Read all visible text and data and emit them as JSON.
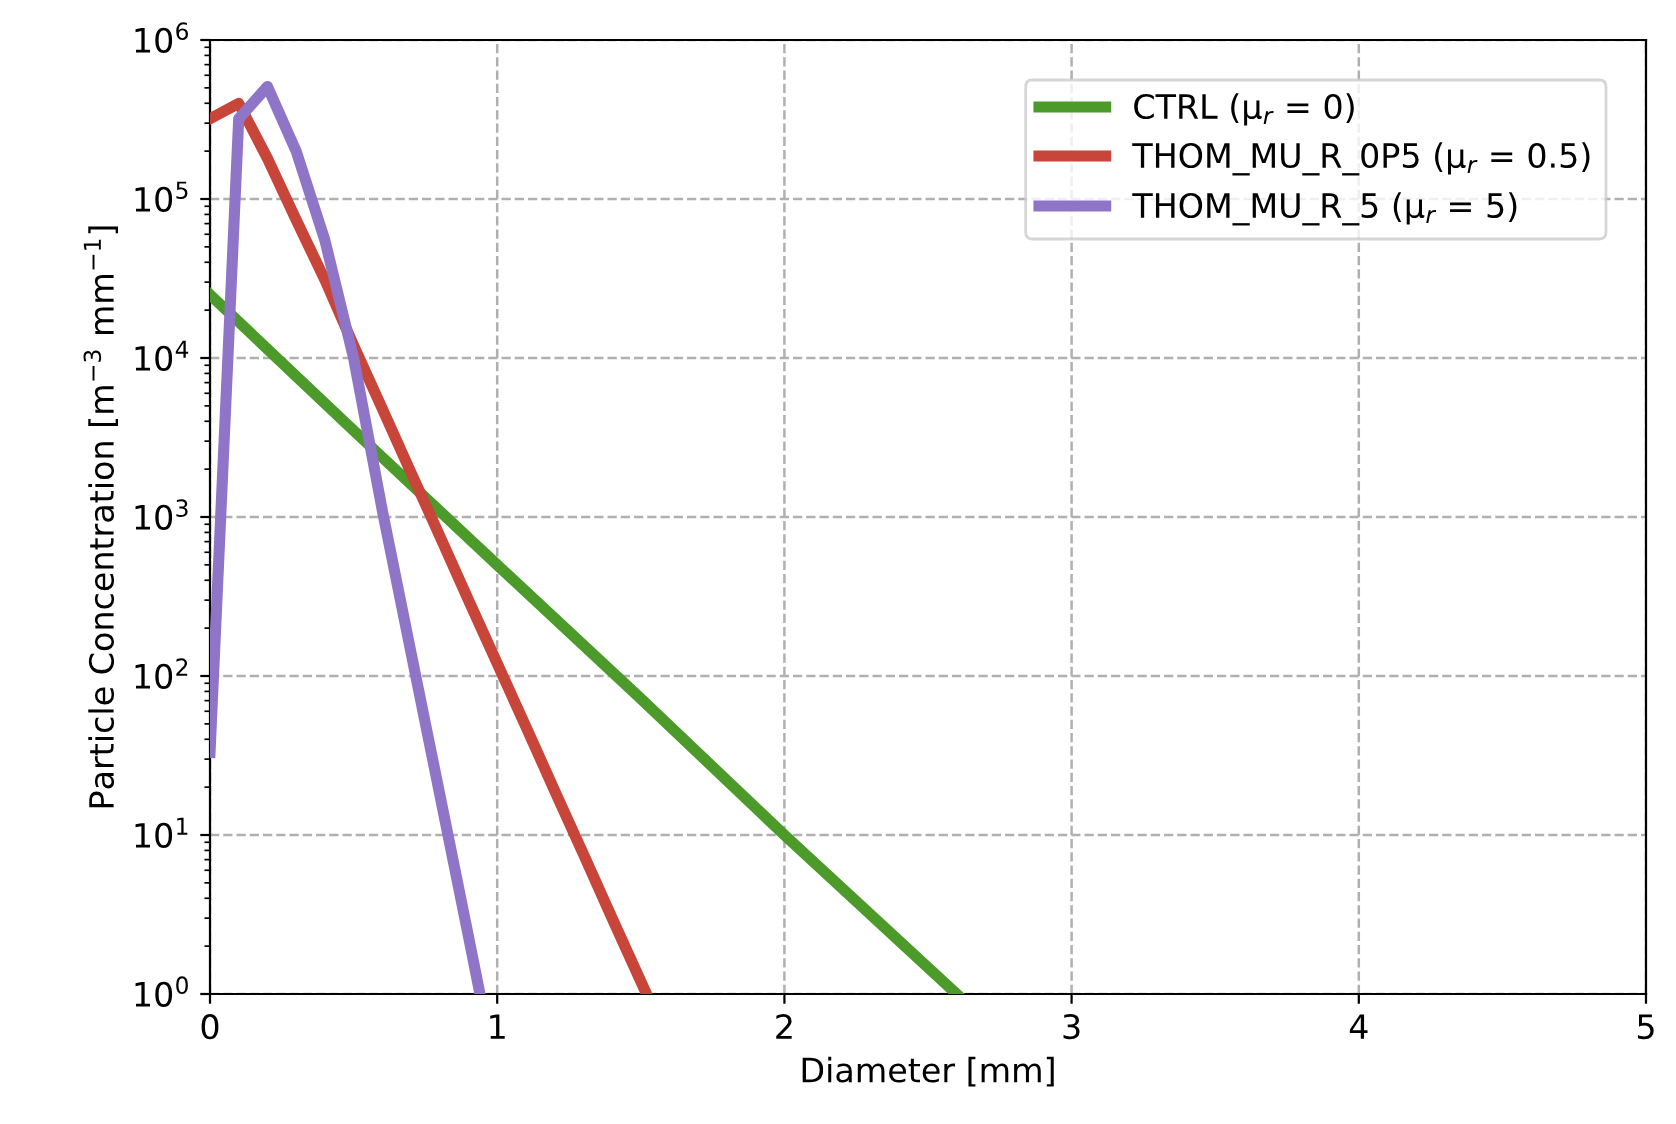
{
  "chart_data": {
    "type": "line",
    "xlabel": "Diameter [mm]",
    "ylabel": "Particle Concentration [m$^{−3}$ mm$^{−1}$]",
    "log": "y",
    "grid": true,
    "legend": "top right",
    "line_style": "dashed",
    "xlim": [
      0,
      5
    ],
    "xticks": [
      0,
      1,
      2,
      3,
      4,
      5
    ],
    "ylim": [
      1,
      1000000
    ],
    "yticks": [
      {
        "value": 1,
        "label": "10$^{0}$"
      },
      {
        "value": 10,
        "label": "10$^{1}$"
      },
      {
        "value": 100,
        "label": "10$^{2}$"
      },
      {
        "value": 1000,
        "label": "10$^{3}$"
      },
      {
        "value": 10000,
        "label": "10$^{4}$"
      },
      {
        "value": 100000,
        "label": "10$^{5}$"
      },
      {
        "value": 1000000,
        "label": "10$^{6}$"
      }
    ],
    "series": [
      {
        "name": "CTRL (μ$_{r}$ = 0)",
        "color": "#4c9a2a",
        "line_style": "solid",
        "x": [
          0,
          0.5,
          1,
          1.5,
          2,
          2.6
        ],
        "values": [
          25000,
          3500,
          500,
          72,
          10,
          1
        ]
      },
      {
        "name": "THOM_MU_R_0P5 (μ$_{r}$ = 0.5)",
        "color": "#c8453a",
        "line_style": "solid",
        "x": [
          0,
          0.1,
          0.2,
          0.3,
          0.4,
          0.5,
          0.6,
          0.7,
          0.8,
          0.9,
          1.0,
          1.1,
          1.2,
          1.3,
          1.4,
          1.5,
          1.52
        ],
        "values": [
          320000,
          400000,
          180000,
          74000,
          31000,
          12000,
          4800,
          1900,
          760,
          300,
          120,
          48,
          19,
          7.6,
          3,
          1.2,
          1
        ]
      },
      {
        "name": "THOM_MU_R_5 (μ$_{r}$ = 5)",
        "color": "#8f75c8",
        "line_style": "solid",
        "x": [
          0,
          0.1,
          0.2,
          0.3,
          0.4,
          0.5,
          0.6,
          0.7,
          0.8,
          0.9,
          0.94
        ],
        "values": [
          33,
          320000,
          510000,
          200000,
          55000,
          10000,
          1100,
          140,
          18,
          2.3,
          1
        ]
      }
    ]
  }
}
